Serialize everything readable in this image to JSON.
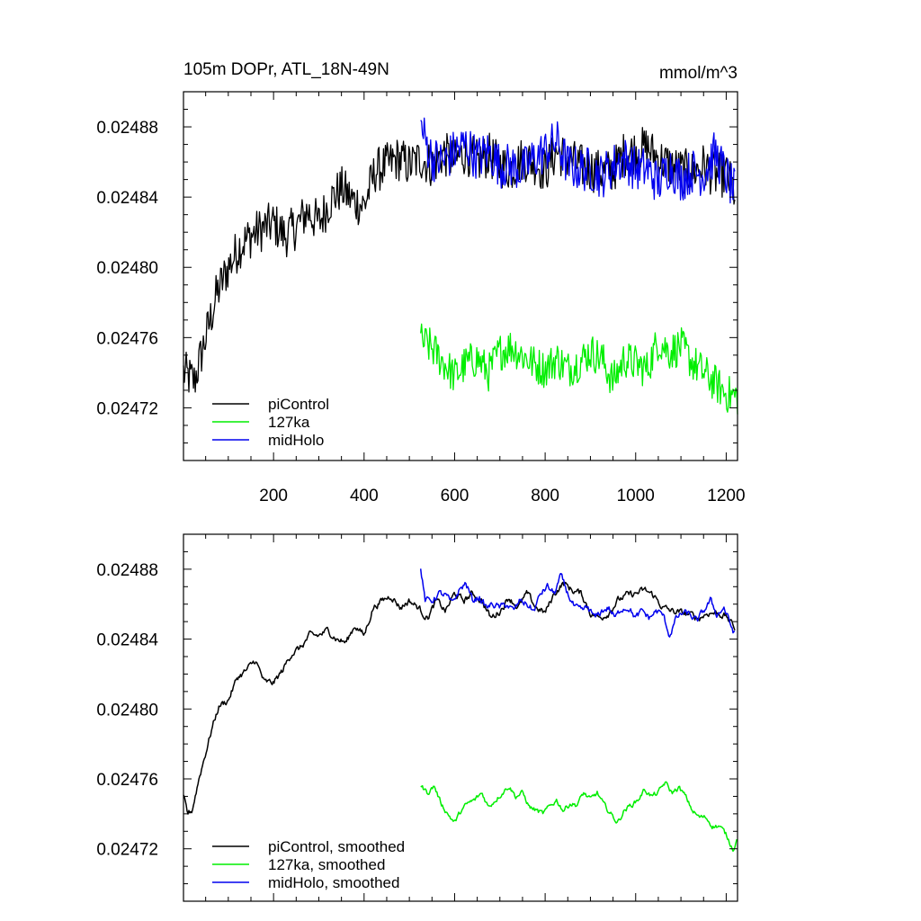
{
  "figure": {
    "title_left": "105m DOPr, ATL_18N-49N",
    "title_right": "mmol/m^3"
  },
  "colors": {
    "piControl": "#000000",
    "127ka": "#00ee00",
    "midHolo": "#0000ee"
  },
  "chart_data": [
    {
      "type": "line",
      "title": "105m DOPr, ATL_18N-49N",
      "units": "mmol/m^3",
      "xlim": [
        1,
        1225
      ],
      "ylim": [
        0.02469,
        0.0249
      ],
      "x_ticks": [
        200,
        400,
        600,
        800,
        1000,
        1200
      ],
      "x_tick_labels": [
        "200",
        "400",
        "600",
        "800",
        "1000",
        "1200"
      ],
      "y_ticks": [
        0.02472,
        0.02476,
        0.0248,
        0.02484,
        0.02488
      ],
      "y_tick_labels": [
        "0.02472",
        "0.02476",
        "0.02480",
        "0.02484",
        "0.02488"
      ],
      "legend_position": "bottom-left",
      "series": [
        {
          "name": "piControl",
          "color": "#000000",
          "x": [
            1,
            25,
            50,
            75,
            100,
            125,
            150,
            175,
            200,
            225,
            250,
            275,
            300,
            325,
            350,
            375,
            400,
            425,
            450,
            475,
            500,
            525,
            550,
            575,
            600,
            625,
            650,
            675,
            700,
            725,
            750,
            775,
            800,
            825,
            850,
            875,
            900,
            925,
            950,
            975,
            1000,
            1025,
            1050,
            1075,
            1100,
            1125,
            1150,
            1175,
            1200,
            1220
          ],
          "y": [
            0.02474,
            0.024735,
            0.02476,
            0.024785,
            0.0248,
            0.024812,
            0.024818,
            0.024822,
            0.024825,
            0.024818,
            0.024823,
            0.024832,
            0.024825,
            0.024838,
            0.024845,
            0.024838,
            0.024835,
            0.024855,
            0.024858,
            0.024862,
            0.024858,
            0.024862,
            0.024858,
            0.024865,
            0.02486,
            0.024866,
            0.02486,
            0.024864,
            0.024858,
            0.024856,
            0.024862,
            0.02486,
            0.024855,
            0.024866,
            0.024862,
            0.024858,
            0.024856,
            0.024854,
            0.024855,
            0.024865,
            0.024866,
            0.024868,
            0.024862,
            0.024858,
            0.024855,
            0.024854,
            0.024858,
            0.024852,
            0.024853,
            0.024842
          ],
          "noise": 1.3e-05
        },
        {
          "name": "127ka",
          "color": "#00ee00",
          "x": [
            525,
            550,
            575,
            600,
            625,
            650,
            675,
            700,
            725,
            750,
            775,
            800,
            825,
            850,
            875,
            900,
            925,
            950,
            975,
            1000,
            1025,
            1050,
            1075,
            1100,
            1125,
            1150,
            1175,
            1200,
            1225
          ],
          "y": [
            0.024758,
            0.024754,
            0.024746,
            0.024738,
            0.024745,
            0.024748,
            0.02474,
            0.024752,
            0.024755,
            0.02475,
            0.024745,
            0.024742,
            0.024748,
            0.024742,
            0.024746,
            0.024752,
            0.024748,
            0.024735,
            0.024748,
            0.024745,
            0.024742,
            0.024758,
            0.024752,
            0.024755,
            0.024746,
            0.02474,
            0.024734,
            0.024728,
            0.024726
          ],
          "noise": 1.1e-05
        },
        {
          "name": "midHolo",
          "color": "#0000ee",
          "x": [
            525,
            550,
            575,
            600,
            625,
            650,
            675,
            700,
            725,
            750,
            775,
            800,
            825,
            850,
            875,
            900,
            925,
            950,
            975,
            1000,
            1025,
            1050,
            1075,
            1100,
            1125,
            1150,
            1175,
            1200,
            1220
          ],
          "y": [
            0.02488,
            0.024862,
            0.02486,
            0.024866,
            0.02487,
            0.024862,
            0.024866,
            0.024858,
            0.024858,
            0.024855,
            0.024862,
            0.024866,
            0.024872,
            0.024858,
            0.024856,
            0.024856,
            0.024852,
            0.024858,
            0.024862,
            0.024856,
            0.024856,
            0.024848,
            0.024858,
            0.02485,
            0.024855,
            0.024853,
            0.024865,
            0.024852,
            0.024842
          ],
          "noise": 1.3e-05
        }
      ]
    },
    {
      "type": "line",
      "title": "",
      "xlim": [
        1,
        1225
      ],
      "ylim": [
        0.02469,
        0.0249
      ],
      "x_ticks": [
        200,
        400,
        600,
        800,
        1000,
        1200
      ],
      "x_tick_labels": [],
      "y_ticks": [
        0.02472,
        0.02476,
        0.0248,
        0.02484,
        0.02488
      ],
      "y_tick_labels": [
        "0.02472",
        "0.02476",
        "0.02480",
        "0.02484",
        "0.02488"
      ],
      "legend_position": "bottom-left",
      "series": [
        {
          "name": "piControl, smoothed",
          "color": "#000000",
          "x": [
            1,
            10,
            20,
            35,
            50,
            65,
            80,
            100,
            120,
            140,
            160,
            180,
            200,
            220,
            240,
            260,
            280,
            300,
            320,
            340,
            360,
            380,
            400,
            420,
            440,
            460,
            480,
            500,
            520,
            540,
            560,
            580,
            600,
            620,
            640,
            660,
            680,
            700,
            720,
            740,
            760,
            780,
            800,
            820,
            840,
            860,
            880,
            900,
            920,
            940,
            960,
            980,
            1000,
            1020,
            1040,
            1060,
            1080,
            1100,
            1120,
            1140,
            1160,
            1180,
            1200,
            1220
          ],
          "y": [
            0.02475,
            0.02474,
            0.024742,
            0.02476,
            0.024775,
            0.02479,
            0.024802,
            0.024805,
            0.024818,
            0.024822,
            0.024828,
            0.024815,
            0.024815,
            0.024822,
            0.024832,
            0.024835,
            0.024842,
            0.024842,
            0.024845,
            0.02484,
            0.024838,
            0.024848,
            0.024842,
            0.024858,
            0.024862,
            0.024865,
            0.024858,
            0.024862,
            0.024858,
            0.024852,
            0.024862,
            0.024856,
            0.024866,
            0.024862,
            0.024866,
            0.024862,
            0.024852,
            0.024856,
            0.024864,
            0.024858,
            0.024866,
            0.024858,
            0.024855,
            0.024866,
            0.024872,
            0.024868,
            0.024866,
            0.024855,
            0.024852,
            0.024855,
            0.024862,
            0.024865,
            0.024866,
            0.024868,
            0.024865,
            0.024858,
            0.024856,
            0.024855,
            0.024854,
            0.024852,
            0.024855,
            0.024855,
            0.024853,
            0.024846
          ],
          "noise": 4e-06
        },
        {
          "name": "127ka, smoothed",
          "color": "#00ee00",
          "x": [
            525,
            540,
            555,
            570,
            585,
            600,
            615,
            630,
            645,
            660,
            675,
            690,
            705,
            720,
            735,
            750,
            765,
            780,
            795,
            810,
            825,
            840,
            855,
            870,
            885,
            900,
            915,
            930,
            945,
            960,
            975,
            990,
            1005,
            1020,
            1035,
            1050,
            1065,
            1080,
            1095,
            1110,
            1125,
            1140,
            1155,
            1170,
            1185,
            1200,
            1215,
            1225
          ],
          "y": [
            0.024756,
            0.024752,
            0.024756,
            0.024746,
            0.02474,
            0.024735,
            0.024742,
            0.024746,
            0.024748,
            0.024752,
            0.024744,
            0.024748,
            0.024752,
            0.024756,
            0.02475,
            0.024752,
            0.024744,
            0.024742,
            0.02474,
            0.024744,
            0.024748,
            0.024742,
            0.024746,
            0.024745,
            0.024752,
            0.024748,
            0.024752,
            0.024745,
            0.02474,
            0.024735,
            0.024742,
            0.024745,
            0.024748,
            0.024754,
            0.02475,
            0.024752,
            0.024758,
            0.024752,
            0.024755,
            0.02475,
            0.024742,
            0.024738,
            0.024738,
            0.024733,
            0.024733,
            0.024728,
            0.02472,
            0.024726
          ],
          "noise": 3e-06
        },
        {
          "name": "midHolo, smoothed",
          "color": "#0000ee",
          "x": [
            525,
            535,
            550,
            565,
            580,
            595,
            610,
            625,
            640,
            655,
            670,
            685,
            700,
            715,
            730,
            745,
            760,
            775,
            790,
            805,
            820,
            835,
            850,
            865,
            880,
            895,
            910,
            925,
            940,
            955,
            970,
            985,
            1000,
            1015,
            1030,
            1045,
            1060,
            1075,
            1090,
            1105,
            1120,
            1135,
            1150,
            1165,
            1180,
            1195,
            1210,
            1220
          ],
          "y": [
            0.02488,
            0.024862,
            0.024862,
            0.024866,
            0.024865,
            0.02486,
            0.024868,
            0.024872,
            0.024862,
            0.024864,
            0.024858,
            0.02486,
            0.024858,
            0.02486,
            0.024856,
            0.024862,
            0.02486,
            0.024856,
            0.024866,
            0.02487,
            0.024866,
            0.024876,
            0.024866,
            0.024858,
            0.024856,
            0.024858,
            0.024852,
            0.024856,
            0.024858,
            0.024852,
            0.024858,
            0.024858,
            0.024852,
            0.024856,
            0.024852,
            0.024856,
            0.024854,
            0.024842,
            0.024852,
            0.024855,
            0.024854,
            0.02485,
            0.024856,
            0.024862,
            0.024854,
            0.024858,
            0.024848,
            0.024842
          ],
          "noise": 4e-06
        }
      ]
    }
  ]
}
